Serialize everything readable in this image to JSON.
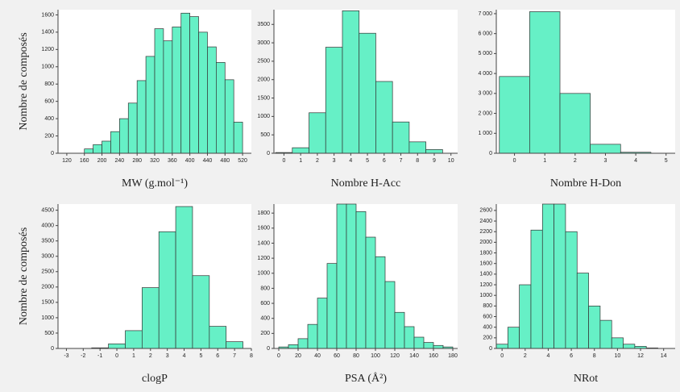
{
  "chart_data": [
    {
      "type": "histogram",
      "xlabel": "MW (g.mol⁻¹)",
      "ylabel": "Nombre de composés",
      "color": "#66f0c6",
      "bins": [
        160,
        180,
        200,
        220,
        240,
        260,
        280,
        300,
        320,
        340,
        360,
        380,
        400,
        420,
        440,
        460,
        480,
        500,
        520
      ],
      "values": [
        50,
        100,
        140,
        250,
        400,
        580,
        840,
        1120,
        1440,
        1300,
        1460,
        1620,
        1580,
        1400,
        1230,
        1050,
        850,
        360
      ],
      "xlim": [
        100,
        540
      ],
      "xticks": [
        120,
        160,
        200,
        240,
        280,
        320,
        360,
        400,
        440,
        480,
        520
      ],
      "ylim": [
        0,
        1660
      ],
      "yticks": [
        0,
        200,
        400,
        600,
        800,
        1000,
        1200,
        1400,
        1600
      ]
    },
    {
      "type": "histogram",
      "xlabel": "Nombre H-Acc",
      "color": "#66f0c6",
      "bins": [
        -0.5,
        0.5,
        1.5,
        2.5,
        3.5,
        4.5,
        5.5,
        6.5,
        7.5,
        8.5,
        9.5
      ],
      "values": [
        20,
        150,
        1100,
        2880,
        3870,
        3260,
        1950,
        850,
        310,
        100
      ],
      "xlim": [
        -0.6,
        10.4
      ],
      "xticks": [
        0,
        1,
        2,
        3,
        4,
        5,
        6,
        7,
        8,
        9,
        10
      ],
      "ylim": [
        0,
        3900
      ],
      "yticks": [
        0,
        500,
        1000,
        1500,
        2000,
        2500,
        3000,
        3500
      ]
    },
    {
      "type": "histogram",
      "xlabel": "Nombre H-Don",
      "color": "#66f0c6",
      "bins": [
        -0.5,
        0.5,
        1.5,
        2.5,
        3.5,
        4.5
      ],
      "values": [
        3850,
        7100,
        3000,
        450,
        50
      ],
      "xlim": [
        -0.6,
        5.3
      ],
      "xticks": [
        0,
        1,
        2,
        3,
        4,
        5
      ],
      "ylim": [
        0,
        7200
      ],
      "yticks": [
        0,
        {
          "value": 1000,
          "label": "1 000"
        },
        {
          "value": 2000,
          "label": "2 000"
        },
        {
          "value": 3000,
          "label": "3 000"
        },
        {
          "value": 4000,
          "label": "4 000"
        },
        {
          "value": 5000,
          "label": "5 000"
        },
        {
          "value": 6000,
          "label": "6 000"
        },
        {
          "value": 7000,
          "label": "7 000"
        }
      ]
    },
    {
      "type": "histogram",
      "xlabel": "clogP",
      "ylabel": "Nombre de composés",
      "color": "#66f0c6",
      "bins": [
        -1.5,
        -0.5,
        0.5,
        1.5,
        2.5,
        3.5,
        4.5,
        5.5,
        6.5,
        7.5
      ],
      "values": [
        20,
        150,
        580,
        1980,
        3800,
        4620,
        2370,
        720,
        220
      ],
      "xlim": [
        -3.5,
        8
      ],
      "xticks": [
        -3,
        -2,
        -1,
        0,
        1,
        2,
        3,
        4,
        5,
        6,
        7,
        8
      ],
      "ylim": [
        0,
        4700
      ],
      "yticks": [
        0,
        500,
        1000,
        1500,
        2000,
        2500,
        3000,
        3500,
        4000,
        4500
      ]
    },
    {
      "type": "histogram",
      "xlabel": "PSA (Å²)",
      "color": "#66f0c6",
      "bins": [
        0,
        10,
        20,
        30,
        40,
        50,
        60,
        70,
        80,
        90,
        100,
        110,
        120,
        130,
        140,
        150,
        160,
        170,
        180
      ],
      "values": [
        20,
        50,
        130,
        320,
        670,
        1130,
        1920,
        1920,
        1820,
        1480,
        1220,
        890,
        480,
        290,
        150,
        80,
        40,
        20
      ],
      "xlim": [
        -5,
        185
      ],
      "xticks": [
        0,
        20,
        40,
        60,
        80,
        100,
        120,
        140,
        160,
        180
      ],
      "ylim": [
        0,
        1920
      ],
      "yticks": [
        0,
        200,
        400,
        600,
        800,
        1000,
        1200,
        1400,
        1600,
        1800
      ]
    },
    {
      "type": "histogram",
      "xlabel": "NRot",
      "color": "#66f0c6",
      "bins": [
        -0.5,
        0.5,
        1.5,
        2.5,
        3.5,
        4.5,
        5.5,
        6.5,
        7.5,
        8.5,
        9.5,
        10.5,
        11.5,
        12.5,
        13.5
      ],
      "values": [
        80,
        400,
        1200,
        2230,
        2720,
        2720,
        2200,
        1420,
        800,
        530,
        200,
        80,
        40,
        10
      ],
      "xlim": [
        -0.5,
        15
      ],
      "xticks": [
        0,
        2,
        4,
        6,
        8,
        10,
        12,
        14
      ],
      "ylim": [
        0,
        2720
      ],
      "yticks": [
        0,
        200,
        400,
        600,
        800,
        1000,
        1200,
        1400,
        1600,
        1800,
        2000,
        2200,
        2400,
        2600
      ]
    }
  ]
}
